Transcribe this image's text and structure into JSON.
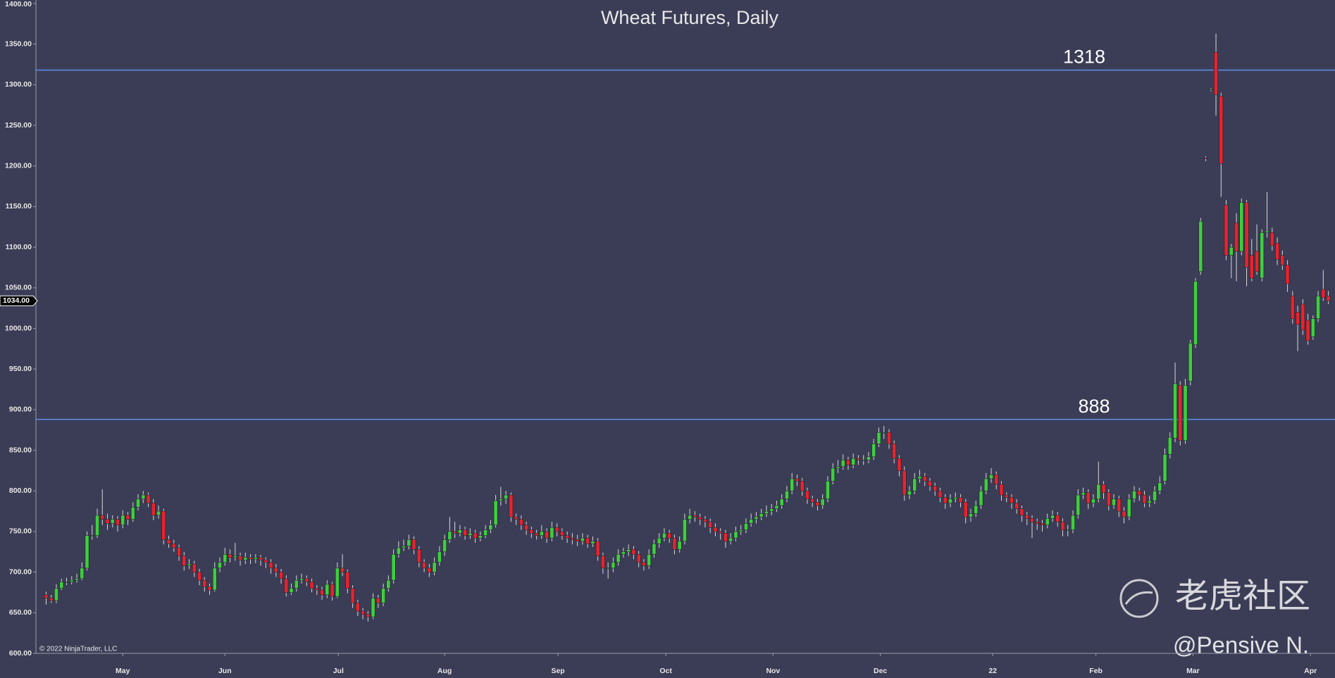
{
  "chart_data": {
    "type": "candlestick",
    "title": "Wheat Futures, Daily",
    "up_color": "#3ecf3e",
    "down_color": "#e8232e",
    "wick_color": "#d8d8d8",
    "level_color": "#5b8be0",
    "xlim": [
      -2,
      252.3
    ],
    "ylim": [
      600,
      1400
    ],
    "yticks": [
      {
        "value": 600,
        "label": "600.00"
      },
      {
        "value": 650,
        "label": "650.00"
      },
      {
        "value": 700,
        "label": "700.00"
      },
      {
        "value": 750,
        "label": "750.00"
      },
      {
        "value": 800,
        "label": "800.00"
      },
      {
        "value": 850,
        "label": "850.00"
      },
      {
        "value": 900,
        "label": "900.00"
      },
      {
        "value": 950,
        "label": "950.00"
      },
      {
        "value": 1000,
        "label": "1000.00"
      },
      {
        "value": 1050,
        "label": "1050.00"
      },
      {
        "value": 1100,
        "label": "1100.00"
      },
      {
        "value": 1150,
        "label": "1150.00"
      },
      {
        "value": 1200,
        "label": "1200.00"
      },
      {
        "value": 1250,
        "label": "1250.00"
      },
      {
        "value": 1300,
        "label": "1300.00"
      },
      {
        "value": 1350,
        "label": "1350.00"
      },
      {
        "value": 1400,
        "label": "1400.00"
      }
    ],
    "xticks": [
      {
        "value": 15,
        "label": "May"
      },
      {
        "value": 35,
        "label": "Jun"
      },
      {
        "value": 57.2,
        "label": "Jul"
      },
      {
        "value": 78,
        "label": "Aug"
      },
      {
        "value": 100.2,
        "label": "Sep"
      },
      {
        "value": 121.3,
        "label": "Oct"
      },
      {
        "value": 142.3,
        "label": "Nov"
      },
      {
        "value": 163.3,
        "label": "Dec"
      },
      {
        "value": 185.3,
        "label": "22"
      },
      {
        "value": 205.5,
        "label": "Feb"
      },
      {
        "value": 224.5,
        "label": "Mar"
      },
      {
        "value": 247.5,
        "label": "Apr"
      }
    ],
    "levels": [
      1318,
      888
    ],
    "last_price": {
      "value": 1034,
      "label": "1034.00"
    },
    "copyright": "© 2022 NinjaTrader, LLC",
    "ohlc": [
      [
        672,
        676,
        660,
        668
      ],
      [
        668,
        672,
        662,
        665
      ],
      [
        665,
        685,
        662,
        680
      ],
      [
        680,
        692,
        678,
        688
      ],
      [
        688,
        693,
        684,
        688
      ],
      [
        688,
        695,
        685,
        690
      ],
      [
        690,
        698,
        687,
        692
      ],
      [
        692,
        712,
        690,
        705
      ],
      [
        705,
        750,
        702,
        745
      ],
      [
        745,
        758,
        740,
        745
      ],
      [
        745,
        778,
        742,
        770
      ],
      [
        770,
        802,
        758,
        765
      ],
      [
        765,
        772,
        752,
        760
      ],
      [
        760,
        770,
        755,
        765
      ],
      [
        765,
        769,
        750,
        758
      ],
      [
        758,
        776,
        754,
        770
      ],
      [
        770,
        774,
        758,
        765
      ],
      [
        765,
        786,
        762,
        780
      ],
      [
        780,
        796,
        776,
        790
      ],
      [
        790,
        800,
        785,
        795
      ],
      [
        795,
        798,
        780,
        785
      ],
      [
        785,
        790,
        764,
        770
      ],
      [
        770,
        782,
        766,
        775
      ],
      [
        775,
        778,
        734,
        740
      ],
      [
        740,
        745,
        730,
        735
      ],
      [
        735,
        740,
        725,
        730
      ],
      [
        730,
        734,
        714,
        720
      ],
      [
        720,
        725,
        702,
        708
      ],
      [
        708,
        716,
        704,
        710
      ],
      [
        710,
        714,
        694,
        700
      ],
      [
        700,
        704,
        684,
        690
      ],
      [
        690,
        694,
        676,
        682
      ],
      [
        682,
        686,
        672,
        678
      ],
      [
        678,
        712,
        676,
        705
      ],
      [
        705,
        718,
        700,
        712
      ],
      [
        712,
        730,
        708,
        722
      ],
      [
        722,
        728,
        712,
        718
      ],
      [
        718,
        736,
        714,
        720
      ],
      [
        720,
        724,
        708,
        715
      ],
      [
        715,
        724,
        710,
        718
      ],
      [
        718,
        722,
        710,
        716
      ],
      [
        716,
        722,
        711,
        718
      ],
      [
        718,
        721,
        708,
        715
      ],
      [
        715,
        718,
        705,
        712
      ],
      [
        712,
        716,
        698,
        705
      ],
      [
        705,
        710,
        694,
        700
      ],
      [
        700,
        704,
        686,
        692
      ],
      [
        692,
        696,
        670,
        675
      ],
      [
        675,
        686,
        672,
        680
      ],
      [
        680,
        696,
        676,
        690
      ],
      [
        690,
        698,
        686,
        692
      ],
      [
        692,
        696,
        683,
        688
      ],
      [
        688,
        692,
        675,
        680
      ],
      [
        680,
        684,
        672,
        678
      ],
      [
        678,
        682,
        666,
        672
      ],
      [
        672,
        690,
        668,
        685
      ],
      [
        685,
        688,
        665,
        670
      ],
      [
        670,
        712,
        668,
        705
      ],
      [
        705,
        722,
        695,
        700
      ],
      [
        700,
        703,
        674,
        680
      ],
      [
        680,
        684,
        656,
        662
      ],
      [
        662,
        666,
        646,
        652
      ],
      [
        652,
        656,
        642,
        648
      ],
      [
        648,
        652,
        639,
        645
      ],
      [
        645,
        674,
        642,
        668
      ],
      [
        668,
        672,
        656,
        662
      ],
      [
        662,
        686,
        658,
        680
      ],
      [
        680,
        696,
        676,
        690
      ],
      [
        690,
        728,
        686,
        722
      ],
      [
        722,
        738,
        718,
        730
      ],
      [
        730,
        740,
        726,
        732
      ],
      [
        732,
        746,
        728,
        740
      ],
      [
        740,
        744,
        722,
        728
      ],
      [
        728,
        732,
        706,
        712
      ],
      [
        712,
        716,
        700,
        705
      ],
      [
        705,
        710,
        694,
        700
      ],
      [
        700,
        718,
        696,
        712
      ],
      [
        712,
        732,
        708,
        725
      ],
      [
        725,
        746,
        720,
        740
      ],
      [
        740,
        768,
        736,
        750
      ],
      [
        750,
        762,
        742,
        748
      ],
      [
        748,
        758,
        744,
        752
      ],
      [
        752,
        756,
        740,
        745
      ],
      [
        745,
        754,
        741,
        748
      ],
      [
        748,
        752,
        736,
        742
      ],
      [
        742,
        750,
        738,
        745
      ],
      [
        745,
        758,
        742,
        752
      ],
      [
        752,
        764,
        748,
        758
      ],
      [
        758,
        795,
        755,
        788
      ],
      [
        788,
        805,
        782,
        790
      ],
      [
        790,
        800,
        784,
        795
      ],
      [
        795,
        798,
        762,
        768
      ],
      [
        768,
        772,
        758,
        765
      ],
      [
        765,
        770,
        752,
        758
      ],
      [
        758,
        762,
        746,
        752
      ],
      [
        752,
        756,
        742,
        748
      ],
      [
        748,
        752,
        740,
        745
      ],
      [
        745,
        758,
        741,
        750
      ],
      [
        750,
        754,
        736,
        742
      ],
      [
        742,
        762,
        738,
        755
      ],
      [
        755,
        760,
        744,
        750
      ],
      [
        750,
        754,
        740,
        745
      ],
      [
        745,
        750,
        736,
        742
      ],
      [
        742,
        748,
        734,
        740
      ],
      [
        740,
        746,
        732,
        738
      ],
      [
        738,
        748,
        734,
        742
      ],
      [
        742,
        746,
        730,
        735
      ],
      [
        735,
        744,
        731,
        738
      ],
      [
        738,
        742,
        714,
        720
      ],
      [
        720,
        724,
        698,
        705
      ],
      [
        705,
        712,
        692,
        705
      ],
      [
        705,
        718,
        700,
        712
      ],
      [
        712,
        728,
        708,
        722
      ],
      [
        722,
        730,
        718,
        725
      ],
      [
        725,
        734,
        720,
        728
      ],
      [
        728,
        732,
        716,
        722
      ],
      [
        722,
        726,
        706,
        712
      ],
      [
        712,
        716,
        702,
        708
      ],
      [
        708,
        728,
        704,
        722
      ],
      [
        722,
        740,
        718,
        735
      ],
      [
        735,
        748,
        730,
        742
      ],
      [
        742,
        754,
        738,
        748
      ],
      [
        748,
        752,
        736,
        742
      ],
      [
        742,
        746,
        722,
        728
      ],
      [
        728,
        744,
        724,
        738
      ],
      [
        738,
        772,
        734,
        765
      ],
      [
        765,
        778,
        760,
        770
      ],
      [
        770,
        775,
        762,
        768
      ],
      [
        768,
        772,
        758,
        765
      ],
      [
        765,
        769,
        755,
        762
      ],
      [
        762,
        766,
        748,
        755
      ],
      [
        755,
        760,
        744,
        750
      ],
      [
        750,
        754,
        740,
        748
      ],
      [
        748,
        752,
        730,
        738
      ],
      [
        738,
        748,
        734,
        742
      ],
      [
        742,
        756,
        738,
        750
      ],
      [
        750,
        758,
        746,
        752
      ],
      [
        752,
        766,
        748,
        760
      ],
      [
        760,
        772,
        756,
        765
      ],
      [
        765,
        774,
        760,
        768
      ],
      [
        768,
        778,
        764,
        772
      ],
      [
        772,
        782,
        768,
        775
      ],
      [
        775,
        784,
        770,
        778
      ],
      [
        778,
        788,
        774,
        782
      ],
      [
        782,
        796,
        778,
        790
      ],
      [
        790,
        806,
        786,
        800
      ],
      [
        800,
        822,
        796,
        815
      ],
      [
        815,
        820,
        806,
        812
      ],
      [
        812,
        816,
        794,
        800
      ],
      [
        800,
        804,
        784,
        790
      ],
      [
        790,
        794,
        780,
        786
      ],
      [
        786,
        790,
        776,
        782
      ],
      [
        782,
        796,
        778,
        790
      ],
      [
        790,
        818,
        786,
        812
      ],
      [
        812,
        834,
        808,
        828
      ],
      [
        828,
        838,
        822,
        830
      ],
      [
        830,
        845,
        826,
        838
      ],
      [
        838,
        842,
        826,
        832
      ],
      [
        832,
        846,
        828,
        840
      ],
      [
        840,
        844,
        832,
        838
      ],
      [
        838,
        844,
        832,
        838
      ],
      [
        838,
        848,
        834,
        842
      ],
      [
        842,
        864,
        838,
        858
      ],
      [
        858,
        878,
        854,
        872
      ],
      [
        872,
        880,
        864,
        872
      ],
      [
        872,
        876,
        852,
        858
      ],
      [
        858,
        862,
        834,
        840
      ],
      [
        840,
        844,
        818,
        825
      ],
      [
        825,
        830,
        788,
        795
      ],
      [
        795,
        806,
        790,
        800
      ],
      [
        800,
        822,
        796,
        815
      ],
      [
        815,
        826,
        810,
        818
      ],
      [
        818,
        822,
        806,
        812
      ],
      [
        812,
        816,
        800,
        806
      ],
      [
        806,
        810,
        794,
        800
      ],
      [
        800,
        804,
        786,
        792
      ],
      [
        792,
        796,
        778,
        785
      ],
      [
        785,
        796,
        780,
        790
      ],
      [
        790,
        798,
        786,
        792
      ],
      [
        792,
        796,
        780,
        786
      ],
      [
        786,
        790,
        760,
        768
      ],
      [
        768,
        778,
        762,
        772
      ],
      [
        772,
        788,
        768,
        782
      ],
      [
        782,
        806,
        778,
        800
      ],
      [
        800,
        822,
        796,
        815
      ],
      [
        815,
        828,
        810,
        820
      ],
      [
        820,
        824,
        802,
        808
      ],
      [
        808,
        812,
        788,
        795
      ],
      [
        795,
        798,
        786,
        792
      ],
      [
        792,
        796,
        778,
        785
      ],
      [
        785,
        790,
        772,
        778
      ],
      [
        778,
        782,
        762,
        770
      ],
      [
        770,
        774,
        758,
        766
      ],
      [
        766,
        770,
        742,
        762
      ],
      [
        762,
        766,
        752,
        760
      ],
      [
        760,
        764,
        750,
        758
      ],
      [
        758,
        772,
        754,
        766
      ],
      [
        766,
        776,
        762,
        770
      ],
      [
        770,
        774,
        756,
        762
      ],
      [
        762,
        766,
        744,
        752
      ],
      [
        752,
        758,
        744,
        752
      ],
      [
        752,
        776,
        748,
        770
      ],
      [
        770,
        802,
        766,
        795
      ],
      [
        795,
        804,
        790,
        798
      ],
      [
        798,
        802,
        778,
        785
      ],
      [
        785,
        796,
        780,
        790
      ],
      [
        790,
        836,
        786,
        808
      ],
      [
        808,
        812,
        790,
        798
      ],
      [
        798,
        802,
        776,
        782
      ],
      [
        782,
        796,
        778,
        790
      ],
      [
        790,
        794,
        768,
        775
      ],
      [
        775,
        780,
        760,
        768
      ],
      [
        768,
        796,
        764,
        790
      ],
      [
        790,
        806,
        786,
        800
      ],
      [
        800,
        804,
        788,
        795
      ],
      [
        795,
        800,
        780,
        785
      ],
      [
        785,
        794,
        780,
        788
      ],
      [
        788,
        806,
        784,
        800
      ],
      [
        800,
        818,
        796,
        810
      ],
      [
        812,
        852,
        808,
        845
      ],
      [
        845,
        872,
        840,
        866
      ],
      [
        865,
        958,
        860,
        932
      ],
      [
        930,
        935,
        856,
        862
      ],
      [
        862,
        938,
        858,
        930
      ],
      [
        935,
        986,
        930,
        982
      ],
      [
        980,
        1062,
        976,
        1058
      ],
      [
        1070,
        1136,
        1066,
        1132
      ],
      [
        1210,
        1212,
        1206,
        1209
      ],
      [
        1294,
        1296,
        1292,
        1295
      ],
      [
        1340,
        1363,
        1262,
        1288
      ],
      [
        1286,
        1290,
        1162,
        1203
      ],
      [
        1152,
        1158,
        1084,
        1090
      ],
      [
        1090,
        1104,
        1062,
        1100
      ],
      [
        1130,
        1142,
        1058,
        1095
      ],
      [
        1095,
        1160,
        1090,
        1155
      ],
      [
        1155,
        1158,
        1052,
        1075
      ],
      [
        1090,
        1110,
        1058,
        1062
      ],
      [
        1095,
        1128,
        1066,
        1070
      ],
      [
        1062,
        1122,
        1058,
        1118
      ],
      [
        1118,
        1168,
        1112,
        1120
      ],
      [
        1118,
        1124,
        1096,
        1102
      ],
      [
        1105,
        1112,
        1078,
        1085
      ],
      [
        1090,
        1096,
        1072,
        1078
      ],
      [
        1078,
        1084,
        1045,
        1055
      ],
      [
        1040,
        1046,
        1006,
        1012
      ],
      [
        1020,
        1028,
        972,
        1005
      ],
      [
        1030,
        1036,
        992,
        998
      ],
      [
        1010,
        1018,
        980,
        985
      ],
      [
        990,
        1016,
        986,
        1012
      ],
      [
        1012,
        1046,
        1008,
        1040
      ],
      [
        1048,
        1072,
        1034,
        1038
      ],
      [
        1040,
        1046,
        1030,
        1034
      ]
    ]
  },
  "watermark": {
    "site": "老虎社区",
    "author": "@Pensive N."
  }
}
